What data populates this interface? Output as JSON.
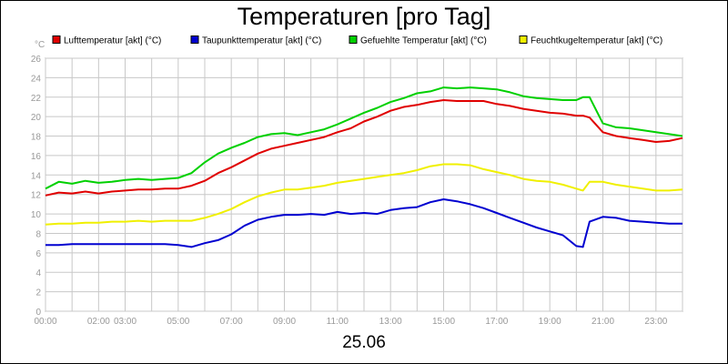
{
  "chart_data": {
    "type": "line",
    "title": "Temperaturen [pro Tag]",
    "date": "25.06",
    "y_unit": "°C",
    "ylim": [
      0,
      26
    ],
    "y_ticks": [
      0,
      2,
      4,
      6,
      8,
      10,
      12,
      14,
      16,
      18,
      20,
      22,
      24,
      26
    ],
    "x_ticks": [
      "00:00",
      "02:00",
      "03:00",
      "05:00",
      "07:00",
      "09:00",
      "11:00",
      "13:00",
      "15:00",
      "17:00",
      "19:00",
      "21:00",
      "23:00"
    ],
    "x_tick_hours": [
      0,
      2,
      3,
      5,
      7,
      9,
      11,
      13,
      15,
      17,
      19,
      21,
      23
    ],
    "xlim_hours": [
      0,
      24
    ],
    "grid": true,
    "legend_position": "top",
    "x_hours": [
      0,
      0.5,
      1,
      1.5,
      2,
      2.5,
      3,
      3.5,
      4,
      4.5,
      5,
      5.5,
      6,
      6.5,
      7,
      7.5,
      8,
      8.5,
      9,
      9.5,
      10,
      10.5,
      11,
      11.5,
      12,
      12.5,
      13,
      13.5,
      14,
      14.5,
      15,
      15.5,
      16,
      16.5,
      17,
      17.5,
      18,
      18.5,
      19,
      19.5,
      20,
      20.25,
      20.5,
      21,
      21.5,
      22,
      22.5,
      23,
      23.5,
      24
    ],
    "series": [
      {
        "name": "Lufttemperatur [akt] (°C)",
        "color": "#e00000",
        "values": [
          11.9,
          12.2,
          12.1,
          12.3,
          12.1,
          12.3,
          12.4,
          12.5,
          12.5,
          12.6,
          12.6,
          12.9,
          13.4,
          14.2,
          14.8,
          15.5,
          16.2,
          16.7,
          17.0,
          17.3,
          17.6,
          17.9,
          18.4,
          18.8,
          19.5,
          20.0,
          20.6,
          21.0,
          21.2,
          21.5,
          21.7,
          21.6,
          21.6,
          21.6,
          21.3,
          21.1,
          20.8,
          20.6,
          20.4,
          20.3,
          20.1,
          20.1,
          19.9,
          18.4,
          18.0,
          17.8,
          17.6,
          17.4,
          17.5,
          17.8
        ]
      },
      {
        "name": "Taupunkttemperatur [akt] (°C)",
        "color": "#0000d0",
        "values": [
          6.8,
          6.8,
          6.9,
          6.9,
          6.9,
          6.9,
          6.9,
          6.9,
          6.9,
          6.9,
          6.8,
          6.6,
          7.0,
          7.3,
          7.9,
          8.8,
          9.4,
          9.7,
          9.9,
          9.9,
          10.0,
          9.9,
          10.2,
          10.0,
          10.1,
          10.0,
          10.4,
          10.6,
          10.7,
          11.2,
          11.5,
          11.3,
          11.0,
          10.6,
          10.1,
          9.6,
          9.1,
          8.6,
          8.2,
          7.8,
          6.7,
          6.6,
          9.2,
          9.7,
          9.6,
          9.3,
          9.2,
          9.1,
          9.0,
          9.0
        ]
      },
      {
        "name": "Gefuehlte Temperatur [akt] (°C)",
        "color": "#00d000",
        "values": [
          12.6,
          13.3,
          13.1,
          13.4,
          13.2,
          13.3,
          13.5,
          13.6,
          13.5,
          13.6,
          13.7,
          14.2,
          15.3,
          16.2,
          16.8,
          17.3,
          17.9,
          18.2,
          18.3,
          18.1,
          18.4,
          18.7,
          19.2,
          19.8,
          20.4,
          20.9,
          21.5,
          21.9,
          22.4,
          22.6,
          23.0,
          22.9,
          23.0,
          22.9,
          22.8,
          22.5,
          22.1,
          21.9,
          21.8,
          21.7,
          21.7,
          22.0,
          22.0,
          19.3,
          18.9,
          18.8,
          18.6,
          18.4,
          18.2,
          18.0
        ]
      },
      {
        "name": "Feuchtkugeltemperatur [akt] (°C)",
        "color": "#f0f000",
        "values": [
          8.9,
          9.0,
          9.0,
          9.1,
          9.1,
          9.2,
          9.2,
          9.3,
          9.2,
          9.3,
          9.3,
          9.3,
          9.6,
          10.0,
          10.5,
          11.2,
          11.8,
          12.2,
          12.5,
          12.5,
          12.7,
          12.9,
          13.2,
          13.4,
          13.6,
          13.8,
          14.0,
          14.2,
          14.5,
          14.9,
          15.1,
          15.1,
          15.0,
          14.6,
          14.3,
          14.0,
          13.6,
          13.4,
          13.3,
          13.0,
          12.6,
          12.4,
          13.3,
          13.3,
          13.0,
          12.8,
          12.6,
          12.4,
          12.4,
          12.5
        ]
      }
    ]
  }
}
